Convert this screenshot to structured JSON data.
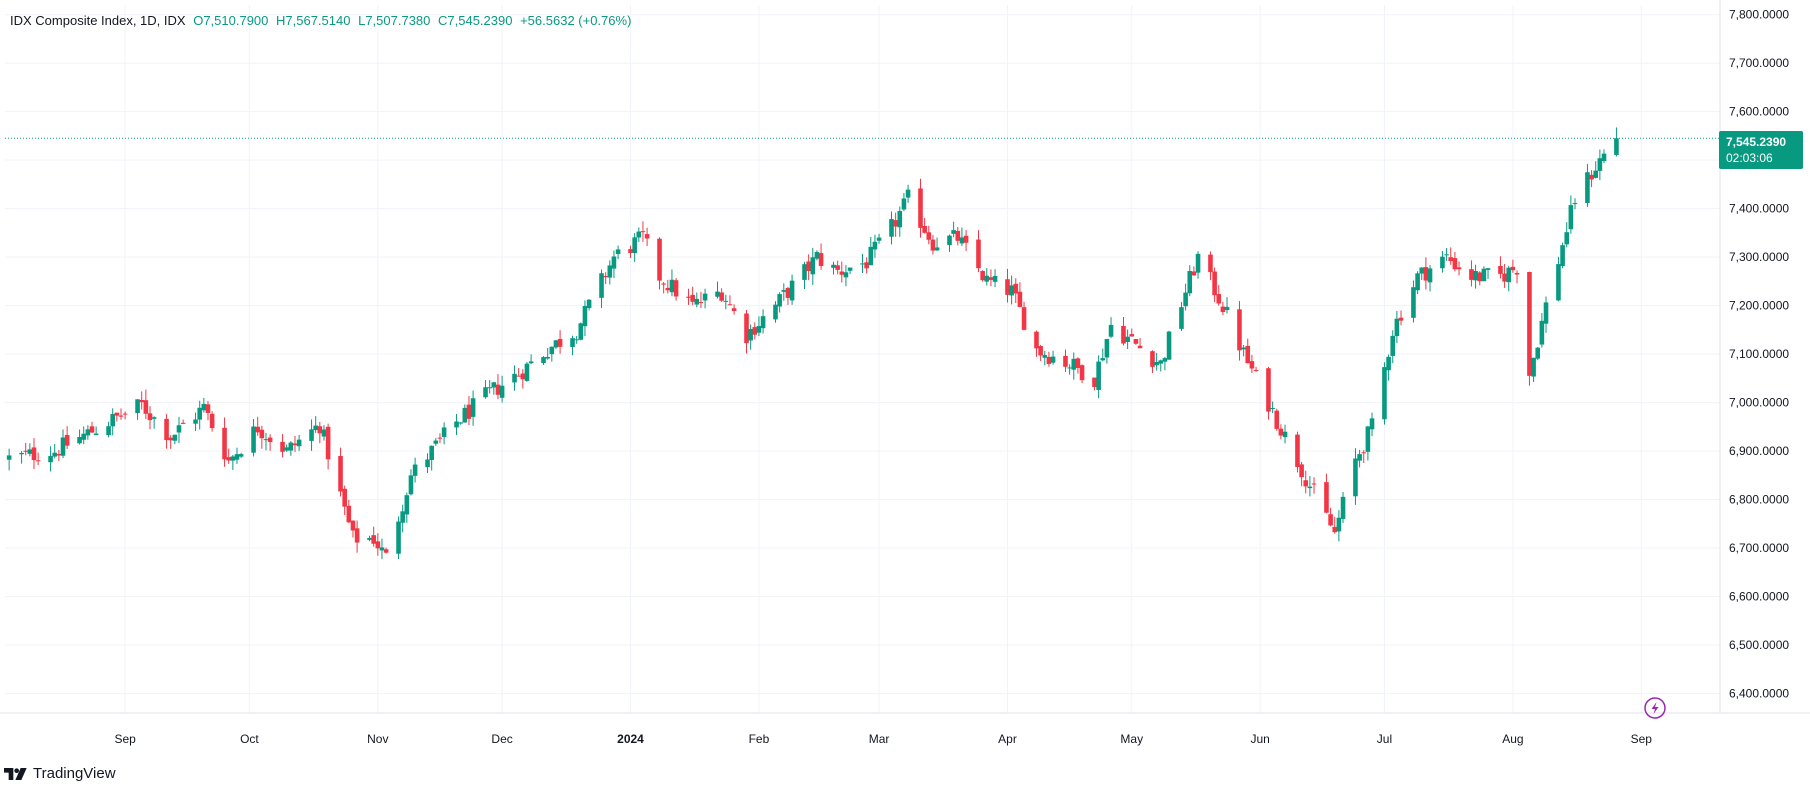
{
  "header": {
    "symbol": "IDX Composite Index, 1D, IDX",
    "open": "O7,510.7900",
    "high": "H7,567.5140",
    "low": "L7,507.7380",
    "close": "C7,545.2390",
    "change": "+56.5632 (+0.76%)"
  },
  "brand": {
    "name": "TradingView"
  },
  "price_tag": {
    "price": "7,545.2390",
    "countdown": "02:03:06"
  },
  "colors": {
    "up": "#089981",
    "down": "#f23645",
    "grid": "#f0f3fa",
    "accent": "#9c27b0"
  },
  "icons": {
    "lightning": "lightning-icon",
    "logo": "tradingview-logo-icon"
  },
  "chart_data": {
    "type": "candlestick",
    "title": "",
    "ylim": [
      6360,
      7820
    ],
    "y_ticks": [
      6400,
      6500,
      6600,
      6700,
      6800,
      6900,
      7000,
      7100,
      7200,
      7300,
      7400,
      7500,
      7600,
      7700,
      7800
    ],
    "y_tick_labels": [
      "6,400.0000",
      "6,500.0000",
      "6,600.0000",
      "6,700.0000",
      "6,800.0000",
      "6,900.0000",
      "7,000.0000",
      "7,100.0000",
      "7,200.0000",
      "7,300.0000",
      "7,400.0000",
      "7,500.0000",
      "7,600.0000",
      "7,700.0000",
      "7,800.0000"
    ],
    "x_ticks": [
      {
        "label": "Sep",
        "date": "2023-09-01"
      },
      {
        "label": "Oct",
        "date": "2023-10-01"
      },
      {
        "label": "Nov",
        "date": "2023-11-01"
      },
      {
        "label": "Dec",
        "date": "2023-12-01"
      },
      {
        "label": "2024",
        "date": "2024-01-01",
        "bold": true
      },
      {
        "label": "Feb",
        "date": "2024-02-01"
      },
      {
        "label": "Mar",
        "date": "2024-03-01"
      },
      {
        "label": "Apr",
        "date": "2024-04-01"
      },
      {
        "label": "May",
        "date": "2024-05-01"
      },
      {
        "label": "Jun",
        "date": "2024-06-01"
      },
      {
        "label": "Jul",
        "date": "2024-07-01"
      },
      {
        "label": "Aug",
        "date": "2024-08-01"
      },
      {
        "label": "Sep",
        "date": "2024-09-01"
      }
    ],
    "x_range": [
      "2023-08-03",
      "2024-09-20"
    ],
    "last_price": 7545.239,
    "grid": true,
    "anchors": [
      [
        "2023-08-04",
        6885
      ],
      [
        "2023-08-15",
        6900
      ],
      [
        "2023-08-28",
        6960
      ],
      [
        "2023-09-05",
        6995
      ],
      [
        "2023-09-12",
        6930
      ],
      [
        "2023-09-20",
        6990
      ],
      [
        "2023-09-26",
        6880
      ],
      [
        "2023-10-03",
        6950
      ],
      [
        "2023-10-10",
        6900
      ],
      [
        "2023-10-18",
        6955
      ],
      [
        "2023-10-26",
        6720
      ],
      [
        "2023-10-31",
        6720
      ],
      [
        "2023-11-03",
        6680
      ],
      [
        "2023-11-09",
        6850
      ],
      [
        "2023-11-20",
        6960
      ],
      [
        "2023-11-28",
        7020
      ],
      [
        "2023-12-05",
        7060
      ],
      [
        "2023-12-12",
        7110
      ],
      [
        "2023-12-19",
        7150
      ],
      [
        "2023-12-28",
        7300
      ],
      [
        "2024-01-04",
        7340
      ],
      [
        "2024-01-08",
        7260
      ],
      [
        "2024-01-16",
        7200
      ],
      [
        "2024-01-23",
        7230
      ],
      [
        "2024-01-29",
        7140
      ],
      [
        "2024-02-05",
        7200
      ],
      [
        "2024-02-15",
        7300
      ],
      [
        "2024-02-20",
        7270
      ],
      [
        "2024-02-27",
        7290
      ],
      [
        "2024-03-04",
        7360
      ],
      [
        "2024-03-08",
        7420
      ],
      [
        "2024-03-14",
        7330
      ],
      [
        "2024-03-20",
        7340
      ],
      [
        "2024-03-27",
        7250
      ],
      [
        "2024-04-02",
        7230
      ],
      [
        "2024-04-08",
        7110
      ],
      [
        "2024-04-16",
        7080
      ],
      [
        "2024-04-22",
        7050
      ],
      [
        "2024-04-26",
        7160
      ],
      [
        "2024-05-02",
        7120
      ],
      [
        "2024-05-08",
        7080
      ],
      [
        "2024-05-14",
        7230
      ],
      [
        "2024-05-17",
        7300
      ],
      [
        "2024-05-23",
        7200
      ],
      [
        "2024-05-28",
        7100
      ],
      [
        "2024-06-03",
        7000
      ],
      [
        "2024-06-07",
        6930
      ],
      [
        "2024-06-13",
        6830
      ],
      [
        "2024-06-19",
        6730
      ],
      [
        "2024-06-24",
        6880
      ],
      [
        "2024-06-28",
        6950
      ],
      [
        "2024-07-03",
        7150
      ],
      [
        "2024-07-09",
        7260
      ],
      [
        "2024-07-16",
        7300
      ],
      [
        "2024-07-22",
        7260
      ],
      [
        "2024-07-29",
        7260
      ],
      [
        "2024-08-02",
        7280
      ],
      [
        "2024-08-05",
        7060
      ],
      [
        "2024-08-09",
        7200
      ],
      [
        "2024-08-16",
        7420
      ],
      [
        "2024-08-22",
        7500
      ],
      [
        "2024-08-26",
        7545.24
      ]
    ]
  }
}
